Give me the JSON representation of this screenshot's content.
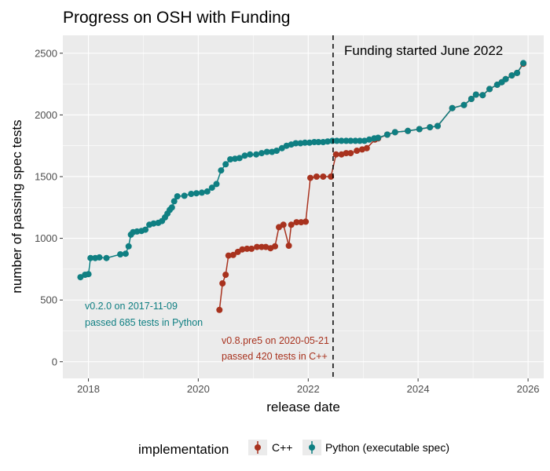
{
  "chart_data": {
    "type": "line",
    "title": "Progress on OSH with Funding",
    "xlabel": "release date",
    "ylabel": "number of passing spec tests",
    "x_type": "date",
    "xlim": [
      "2017-07-15",
      "2026-04-15"
    ],
    "ylim": [
      -135,
      2645
    ],
    "x_ticks": [
      {
        "date": "2018-01-01",
        "label": "2018"
      },
      {
        "date": "2020-01-01",
        "label": "2020"
      },
      {
        "date": "2022-01-01",
        "label": "2022"
      },
      {
        "date": "2024-01-01",
        "label": "2024"
      },
      {
        "date": "2026-01-01",
        "label": "2026"
      }
    ],
    "y_ticks": [
      0,
      500,
      1000,
      1500,
      2000,
      2500
    ],
    "grid": true,
    "legend": {
      "position": "bottom",
      "title": "implementation",
      "entries": [
        {
          "label": "C++",
          "color": "#a8321e"
        },
        {
          "label": "Python (executable spec)",
          "color": "#0f7f82"
        }
      ]
    },
    "vline": {
      "date": "2022-06-15",
      "label": "Funding started June 2022"
    },
    "annotations": [
      {
        "line1": "v0.2.0 on 2017-11-09",
        "line2": "passed 685 tests in Python",
        "color": "#0f7f82"
      },
      {
        "line1": "v0.8.pre5 on 2020-05-21",
        "line2": "passed 420 tests in C++",
        "color": "#a8321e"
      }
    ],
    "series": [
      {
        "name": "C++",
        "color": "#a8321e",
        "points": [
          [
            "2020-05-21",
            420
          ],
          [
            "2020-06-10",
            635
          ],
          [
            "2020-07-01",
            705
          ],
          [
            "2020-07-20",
            860
          ],
          [
            "2020-08-20",
            865
          ],
          [
            "2020-09-20",
            890
          ],
          [
            "2020-10-20",
            910
          ],
          [
            "2020-11-20",
            915
          ],
          [
            "2020-12-20",
            915
          ],
          [
            "2021-01-25",
            930
          ],
          [
            "2021-02-25",
            930
          ],
          [
            "2021-03-25",
            930
          ],
          [
            "2021-04-25",
            920
          ],
          [
            "2021-05-25",
            935
          ],
          [
            "2021-06-20",
            1090
          ],
          [
            "2021-07-20",
            1110
          ],
          [
            "2021-08-25",
            940
          ],
          [
            "2021-09-10",
            1110
          ],
          [
            "2021-10-15",
            1130
          ],
          [
            "2021-11-15",
            1130
          ],
          [
            "2021-12-15",
            1135
          ],
          [
            "2022-01-15",
            1490
          ],
          [
            "2022-02-25",
            1500
          ],
          [
            "2022-04-10",
            1500
          ],
          [
            "2022-06-01",
            1500
          ],
          [
            "2022-07-05",
            1680
          ],
          [
            "2022-08-10",
            1680
          ],
          [
            "2022-09-10",
            1690
          ],
          [
            "2022-10-10",
            1690
          ],
          [
            "2022-11-20",
            1710
          ],
          [
            "2022-12-25",
            1720
          ],
          [
            "2023-01-25",
            1730
          ],
          [
            "2023-03-20",
            1800
          ],
          [
            "2023-04-10",
            1810
          ],
          [
            "2023-06-10",
            1840
          ],
          [
            "2023-08-01",
            1860
          ],
          [
            "2023-10-25",
            1870
          ],
          [
            "2024-01-10",
            1885
          ],
          [
            "2024-03-20",
            1900
          ],
          [
            "2024-05-10",
            1910
          ],
          [
            "2024-08-15",
            2055
          ],
          [
            "2024-11-01",
            2080
          ],
          [
            "2024-12-20",
            2130
          ],
          [
            "2025-01-20",
            2165
          ],
          [
            "2025-03-05",
            2160
          ],
          [
            "2025-04-20",
            2210
          ],
          [
            "2025-06-10",
            2245
          ],
          [
            "2025-07-10",
            2265
          ],
          [
            "2025-08-05",
            2290
          ],
          [
            "2025-09-15",
            2320
          ],
          [
            "2025-10-20",
            2340
          ],
          [
            "2025-12-01",
            2415
          ]
        ]
      },
      {
        "name": "Python (executable spec)",
        "color": "#0f7f82",
        "points": [
          [
            "2017-11-09",
            685
          ],
          [
            "2017-12-10",
            705
          ],
          [
            "2018-01-01",
            710
          ],
          [
            "2018-01-15",
            840
          ],
          [
            "2018-02-15",
            840
          ],
          [
            "2018-03-15",
            845
          ],
          [
            "2018-05-01",
            840
          ],
          [
            "2018-08-01",
            870
          ],
          [
            "2018-09-05",
            875
          ],
          [
            "2018-09-25",
            935
          ],
          [
            "2018-10-10",
            1030
          ],
          [
            "2018-10-25",
            1050
          ],
          [
            "2018-11-20",
            1055
          ],
          [
            "2018-12-20",
            1060
          ],
          [
            "2019-01-15",
            1070
          ],
          [
            "2019-02-10",
            1110
          ],
          [
            "2019-03-10",
            1120
          ],
          [
            "2019-04-10",
            1125
          ],
          [
            "2019-05-05",
            1140
          ],
          [
            "2019-05-25",
            1170
          ],
          [
            "2019-06-10",
            1200
          ],
          [
            "2019-06-25",
            1230
          ],
          [
            "2019-07-10",
            1250
          ],
          [
            "2019-07-25",
            1300
          ],
          [
            "2019-08-15",
            1340
          ],
          [
            "2019-10-01",
            1345
          ],
          [
            "2019-11-15",
            1360
          ],
          [
            "2019-12-20",
            1365
          ],
          [
            "2020-01-25",
            1370
          ],
          [
            "2020-03-01",
            1380
          ],
          [
            "2020-04-01",
            1410
          ],
          [
            "2020-05-01",
            1440
          ],
          [
            "2020-06-01",
            1550
          ],
          [
            "2020-07-01",
            1600
          ],
          [
            "2020-08-01",
            1640
          ],
          [
            "2020-09-01",
            1645
          ],
          [
            "2020-10-01",
            1650
          ],
          [
            "2020-11-05",
            1670
          ],
          [
            "2020-12-10",
            1680
          ],
          [
            "2021-01-20",
            1680
          ],
          [
            "2021-02-25",
            1690
          ],
          [
            "2021-04-01",
            1700
          ],
          [
            "2021-05-05",
            1700
          ],
          [
            "2021-06-05",
            1710
          ],
          [
            "2021-07-10",
            1730
          ],
          [
            "2021-08-10",
            1750
          ],
          [
            "2021-09-10",
            1760
          ],
          [
            "2021-10-10",
            1770
          ],
          [
            "2021-11-10",
            1770
          ],
          [
            "2021-12-10",
            1775
          ],
          [
            "2022-01-10",
            1775
          ],
          [
            "2022-02-10",
            1780
          ],
          [
            "2022-03-10",
            1780
          ],
          [
            "2022-04-10",
            1780
          ],
          [
            "2022-05-10",
            1785
          ],
          [
            "2022-06-10",
            1790
          ],
          [
            "2022-07-10",
            1790
          ],
          [
            "2022-08-10",
            1790
          ],
          [
            "2022-09-10",
            1790
          ],
          [
            "2022-10-10",
            1790
          ],
          [
            "2022-11-10",
            1790
          ],
          [
            "2022-12-10",
            1790
          ],
          [
            "2023-01-10",
            1790
          ],
          [
            "2023-02-10",
            1800
          ],
          [
            "2023-03-15",
            1810
          ],
          [
            "2023-04-10",
            1815
          ],
          [
            "2023-06-10",
            1840
          ],
          [
            "2023-08-01",
            1860
          ],
          [
            "2023-10-25",
            1870
          ],
          [
            "2024-01-10",
            1885
          ],
          [
            "2024-03-20",
            1900
          ],
          [
            "2024-05-10",
            1910
          ],
          [
            "2024-08-15",
            2055
          ],
          [
            "2024-11-01",
            2080
          ],
          [
            "2024-12-20",
            2130
          ],
          [
            "2025-01-20",
            2165
          ],
          [
            "2025-03-05",
            2160
          ],
          [
            "2025-04-20",
            2210
          ],
          [
            "2025-06-10",
            2245
          ],
          [
            "2025-07-10",
            2265
          ],
          [
            "2025-08-05",
            2290
          ],
          [
            "2025-09-15",
            2320
          ],
          [
            "2025-10-20",
            2340
          ],
          [
            "2025-12-01",
            2420
          ]
        ]
      }
    ]
  }
}
